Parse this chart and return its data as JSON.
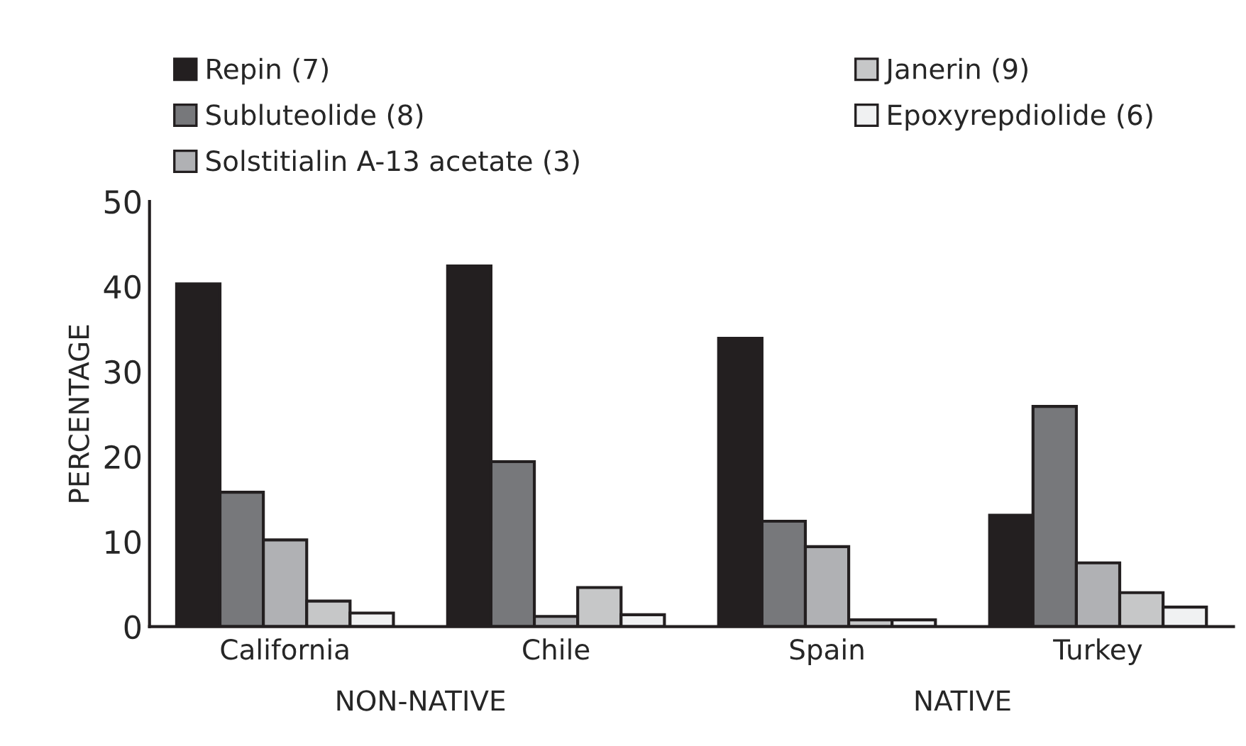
{
  "chart_data": {
    "type": "bar",
    "ylabel": "PERCENTAGE",
    "categories": [
      "California",
      "Chile",
      "Spain",
      "Turkey"
    ],
    "series": [
      {
        "name": "Repin (7)",
        "color": "#231f20",
        "values": [
          40.3,
          42.4,
          33.9,
          13.1
        ]
      },
      {
        "name": "Subluteolide (8)",
        "color": "#77787b",
        "values": [
          15.8,
          19.4,
          12.4,
          25.9
        ]
      },
      {
        "name": "Solstitialin A-13 acetate (3)",
        "color": "#b0b1b4",
        "values": [
          10.2,
          1.2,
          9.4,
          7.5
        ]
      },
      {
        "name": "Janerin (9)",
        "color": "#c6c7c8",
        "values": [
          3.0,
          4.6,
          0.8,
          4.0
        ]
      },
      {
        "name": "Epoxyrepdiolide (6)",
        "color": "#f0f1f2",
        "values": [
          1.6,
          1.4,
          0.8,
          2.3
        ]
      }
    ],
    "ylim": [
      0,
      50
    ],
    "yticks": [
      0,
      10,
      20,
      30,
      40,
      50
    ],
    "annotations": [
      "NON-NATIVE",
      "NATIVE"
    ],
    "legend": "top",
    "grid": false
  }
}
